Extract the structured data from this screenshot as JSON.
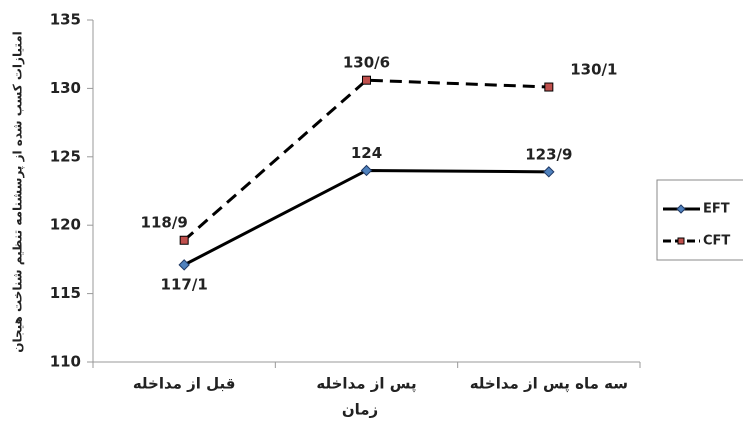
{
  "chart_data": {
    "type": "line",
    "x_label": "زمان",
    "y_label": "امتیازات کسب شده از پرسشنامه تنظیم شناخت هیجان",
    "categories": [
      "قبل از مداخله",
      "پس از مداخله",
      "سه ماه پس از مداخله"
    ],
    "series": [
      {
        "name": "EFT",
        "color": "#000000",
        "marker_color": "#4f81bd",
        "dashed": false,
        "values": [
          117.1,
          124,
          123.9
        ],
        "value_labels": [
          "117/1",
          "124",
          "123/9"
        ]
      },
      {
        "name": "CFT",
        "color": "#000000",
        "marker_color": "#c0504d",
        "dashed": true,
        "values": [
          118.9,
          130.6,
          130.1
        ],
        "value_labels": [
          "118/9",
          "130/6",
          "130/1"
        ]
      }
    ],
    "ylim": [
      110,
      135
    ],
    "yticks": [
      110,
      115,
      120,
      125,
      130,
      135
    ],
    "grid": false,
    "legend": "right"
  }
}
